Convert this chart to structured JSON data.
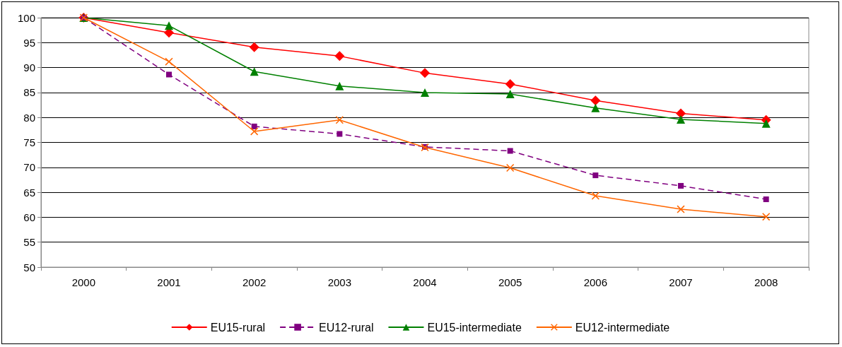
{
  "chart_data": {
    "type": "line",
    "categories": [
      "2000",
      "2001",
      "2002",
      "2003",
      "2004",
      "2005",
      "2006",
      "2007",
      "2008"
    ],
    "series": [
      {
        "name": "EU15-rural",
        "color": "#ff0000",
        "marker": "diamond",
        "line_style": "solid",
        "values": [
          100,
          97.0,
          94.1,
          92.3,
          88.9,
          86.7,
          83.4,
          80.8,
          79.5
        ]
      },
      {
        "name": "EU12-rural",
        "color": "#800080",
        "marker": "square",
        "line_style": "dashed",
        "values": [
          100,
          88.6,
          78.2,
          76.7,
          74.1,
          73.3,
          68.4,
          66.3,
          63.6
        ]
      },
      {
        "name": "EU15-intermediate",
        "color": "#008000",
        "marker": "triangle",
        "line_style": "solid",
        "values": [
          100,
          98.4,
          89.2,
          86.3,
          85.0,
          84.7,
          81.9,
          79.6,
          78.8
        ]
      },
      {
        "name": "EU12-intermediate",
        "color": "#ff6600",
        "marker": "cross",
        "line_style": "solid",
        "values": [
          100,
          91.2,
          77.2,
          79.5,
          74.0,
          69.9,
          64.3,
          61.6,
          60.1
        ]
      }
    ],
    "ylim": [
      50,
      100
    ],
    "yticks": [
      50,
      55,
      60,
      65,
      70,
      75,
      80,
      85,
      90,
      95,
      100
    ],
    "grid": "y",
    "legend": "bottom"
  }
}
